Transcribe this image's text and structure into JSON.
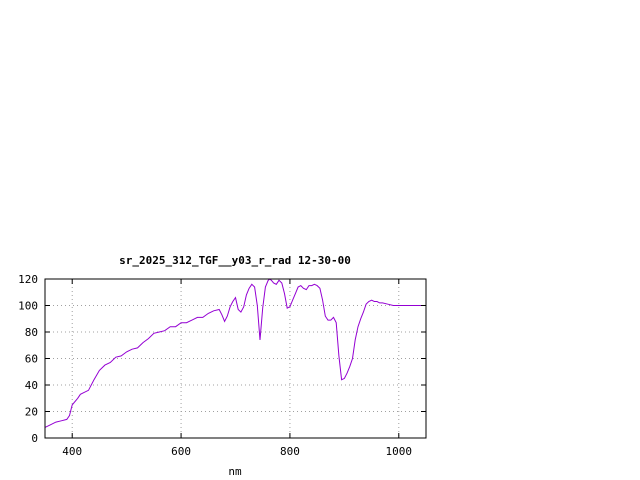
{
  "chart_data": {
    "type": "line",
    "title": "sr_2025_312_TGF__y03_r_rad 12-30-00",
    "xlabel": "nm",
    "ylabel": "",
    "xlim": [
      350,
      1050
    ],
    "ylim": [
      0,
      120
    ],
    "xticks": [
      400,
      600,
      800,
      1000
    ],
    "yticks": [
      0,
      20,
      40,
      60,
      80,
      100,
      120
    ],
    "grid": true,
    "colors": {
      "series": "#9400d3",
      "frame": "#000000",
      "grid": "#a0a0a0"
    },
    "series": [
      {
        "name": "",
        "x": [
          350,
          360,
          370,
          380,
          390,
          395,
          400,
          410,
          415,
          420,
          430,
          440,
          450,
          460,
          470,
          480,
          490,
          500,
          510,
          520,
          530,
          540,
          550,
          560,
          570,
          580,
          590,
          600,
          610,
          620,
          630,
          640,
          650,
          660,
          670,
          675,
          680,
          685,
          690,
          695,
          700,
          705,
          710,
          715,
          720,
          725,
          730,
          735,
          740,
          745,
          750,
          755,
          760,
          763,
          766,
          770,
          775,
          780,
          785,
          790,
          795,
          800,
          805,
          810,
          815,
          820,
          825,
          830,
          835,
          840,
          845,
          850,
          855,
          860,
          865,
          870,
          875,
          880,
          885,
          890,
          895,
          900,
          905,
          910,
          915,
          920,
          925,
          930,
          935,
          940,
          945,
          950,
          955,
          960,
          965,
          970,
          980,
          990,
          1000,
          1010,
          1020,
          1030,
          1040,
          1050
        ],
        "y": [
          8,
          10,
          12,
          13,
          14,
          17,
          25,
          30,
          33,
          34,
          36,
          44,
          51,
          55,
          57,
          61,
          62,
          65,
          67,
          68,
          72,
          75,
          79,
          80,
          81,
          84,
          84,
          87,
          87,
          89,
          91,
          91,
          94,
          96,
          97,
          93,
          88,
          92,
          99,
          103,
          106,
          97,
          95,
          99,
          108,
          113,
          116,
          114,
          100,
          74,
          98,
          114,
          119,
          120,
          119,
          117,
          116,
          119,
          117,
          109,
          98,
          99,
          104,
          109,
          114,
          115,
          113,
          112,
          115,
          115,
          116,
          115,
          113,
          104,
          92,
          89,
          89,
          91,
          87,
          62,
          44,
          45,
          49,
          54,
          60,
          74,
          84,
          90,
          95,
          101,
          103,
          104,
          103,
          103,
          102,
          102,
          101,
          100,
          100,
          100,
          100,
          100,
          100,
          100
        ]
      }
    ]
  }
}
